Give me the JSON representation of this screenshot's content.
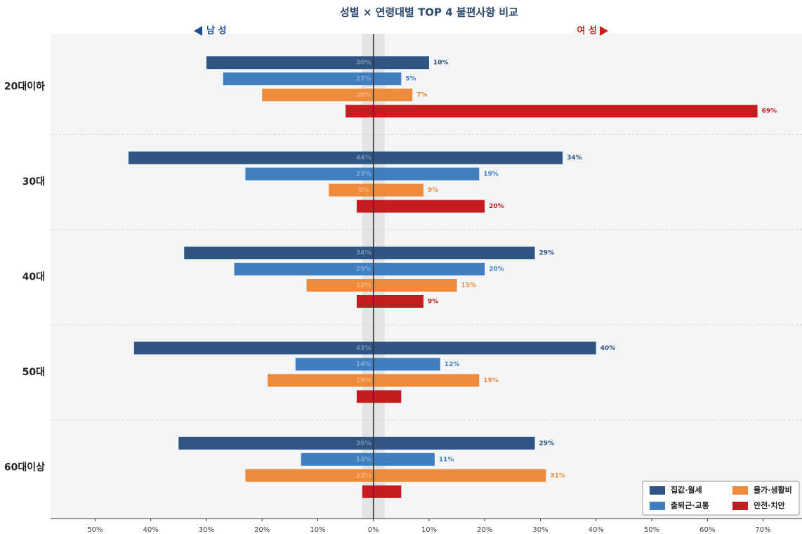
{
  "chart_data": {
    "type": "butterfly",
    "title": "성별 × 연령대별 TOP 4 불편사항 비교",
    "left_label": "남 성",
    "right_label": "여 성",
    "left_color": "#1f4e8c",
    "right_color": "#c81e1e",
    "categories": [
      "20대이하",
      "30대",
      "40대",
      "50대",
      "60대이상"
    ],
    "series": [
      {
        "name": "집값·월세",
        "color": "#2e5583",
        "label_color": "#2e5583",
        "male": {
          "values": [
            -30,
            -44,
            -34,
            -43,
            -35
          ],
          "value_labels": [
            "30%",
            "44%",
            "34%",
            "43%",
            "35%"
          ]
        },
        "female": {
          "values": [
            10,
            34,
            29,
            40,
            29
          ],
          "value_labels": [
            "10%",
            "34%",
            "29%",
            "40%",
            "29%"
          ]
        }
      },
      {
        "name": "출퇴근·교통",
        "color": "#3f7fc0",
        "label_color": "#3f7fc0",
        "male": {
          "values": [
            -27,
            -23,
            -25,
            -14,
            -13
          ],
          "value_labels": [
            "27%",
            "23%",
            "25%",
            "14%",
            "13%"
          ]
        },
        "female": {
          "values": [
            5,
            19,
            20,
            12,
            11
          ],
          "value_labels": [
            "5%",
            "19%",
            "20%",
            "12%",
            "11%"
          ]
        }
      },
      {
        "name": "물가·생활비",
        "color": "#ee8b3a",
        "label_color": "#ee8b3a",
        "male": {
          "values": [
            -20,
            -8,
            -12,
            -19,
            -23
          ],
          "value_labels": [
            "20%",
            "8%",
            "12%",
            "19%",
            "23%"
          ]
        },
        "female": {
          "values": [
            7,
            9,
            15,
            19,
            31
          ],
          "value_labels": [
            "7%",
            "9%",
            "15%",
            "19%",
            "31%"
          ]
        }
      },
      {
        "name": "안전·치안",
        "color": "#c51d1f",
        "label_color": "#c51d1f",
        "male": {
          "values": [
            -5,
            -3,
            -3,
            -3,
            -2
          ],
          "value_labels": [
            null,
            null,
            null,
            null,
            null
          ]
        },
        "female": {
          "values": [
            69,
            20,
            9,
            5,
            5
          ],
          "value_labels": [
            "69%",
            "20%",
            "9%",
            null,
            null
          ]
        }
      }
    ],
    "xlim": [
      -58,
      77
    ],
    "xticks": [
      {
        "value": -50,
        "label": "50%"
      },
      {
        "value": -40,
        "label": "40%"
      },
      {
        "value": -30,
        "label": "30%"
      },
      {
        "value": -20,
        "label": "20%"
      },
      {
        "value": -10,
        "label": "10%"
      },
      {
        "value": 0,
        "label": "0%"
      },
      {
        "value": 10,
        "label": "10%"
      },
      {
        "value": 20,
        "label": "20%"
      },
      {
        "value": 30,
        "label": "30%"
      },
      {
        "value": 40,
        "label": "40%"
      },
      {
        "value": 50,
        "label": "50%"
      },
      {
        "value": 60,
        "label": "60%"
      },
      {
        "value": 70,
        "label": "70%"
      }
    ],
    "legend": "lower right"
  }
}
